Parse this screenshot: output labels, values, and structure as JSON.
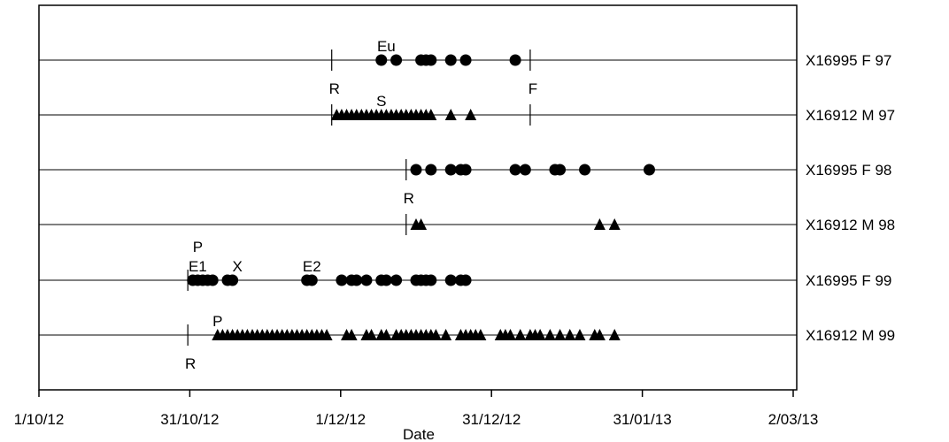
{
  "chart_data": {
    "type": "scatter",
    "title": "",
    "xlabel": "Date",
    "ylabel": "",
    "x_ticks": [
      "1/10/12",
      "31/10/12",
      "1/12/12",
      "31/12/12",
      "31/01/13",
      "2/03/13"
    ],
    "xlim": [
      "2012-10-01",
      "2013-03-02"
    ],
    "grid": false,
    "legend": "none",
    "series": [
      {
        "name": "X16995 F 97",
        "marker": "circle",
        "x": [
          "2012-12-09",
          "2012-12-12",
          "2012-12-17",
          "2012-12-18",
          "2012-12-19",
          "2012-12-23",
          "2012-12-26",
          "2013-01-05"
        ],
        "markers": [
          {
            "x": "2012-11-29",
            "label": "R"
          },
          {
            "x": "2013-01-08",
            "label": "F"
          }
        ],
        "annotations": [
          {
            "x": "2012-12-10",
            "label": "Eu"
          }
        ]
      },
      {
        "name": "X16912 M 97",
        "marker": "triangle",
        "x": [
          "2012-11-30",
          "2012-12-01",
          "2012-12-02",
          "2012-12-03",
          "2012-12-04",
          "2012-12-05",
          "2012-12-06",
          "2012-12-07",
          "2012-12-08",
          "2012-12-09",
          "2012-12-10",
          "2012-12-11",
          "2012-12-12",
          "2012-12-13",
          "2012-12-14",
          "2012-12-15",
          "2012-12-16",
          "2012-12-17",
          "2012-12-18",
          "2012-12-19",
          "2012-12-23",
          "2012-12-27"
        ],
        "markers": [
          {
            "x": "2012-11-29",
            "label": ""
          },
          {
            "x": "2013-01-08",
            "label": ""
          }
        ],
        "annotations": [
          {
            "x": "2012-12-09",
            "label": "S"
          }
        ]
      },
      {
        "name": "X16995 F 98",
        "marker": "circle",
        "x": [
          "2012-12-16",
          "2012-12-19",
          "2012-12-23",
          "2012-12-25",
          "2012-12-26",
          "2013-01-05",
          "2013-01-07",
          "2013-01-13",
          "2013-01-14",
          "2013-01-19",
          "2013-02-01"
        ],
        "markers": [
          {
            "x": "2012-12-14",
            "label": "R"
          }
        ],
        "annotations": []
      },
      {
        "name": "X16912 M 98",
        "marker": "triangle",
        "x": [
          "2012-12-16",
          "2012-12-17",
          "2013-01-22",
          "2013-01-25"
        ],
        "markers": [
          {
            "x": "2012-12-14",
            "label": ""
          }
        ],
        "annotations": []
      },
      {
        "name": "X16995 F 99",
        "marker": "circle",
        "x": [
          "2012-11-01",
          "2012-11-02",
          "2012-11-03",
          "2012-11-04",
          "2012-11-05",
          "2012-11-08",
          "2012-11-09",
          "2012-11-24",
          "2012-11-25",
          "2012-12-01",
          "2012-12-03",
          "2012-12-04",
          "2012-12-06",
          "2012-12-09",
          "2012-12-10",
          "2012-12-12",
          "2012-12-16",
          "2012-12-17",
          "2012-12-18",
          "2012-12-19",
          "2012-12-23",
          "2012-12-25",
          "2012-12-26"
        ],
        "markers": [
          {
            "x": "2012-10-31",
            "label": ""
          }
        ],
        "annotations": [
          {
            "x": "2012-11-02",
            "label": "P",
            "row": 2
          },
          {
            "x": "2012-11-02",
            "label": "E1",
            "row": 1
          },
          {
            "x": "2012-11-10",
            "label": "X",
            "row": 1
          },
          {
            "x": "2012-11-25",
            "label": "E2",
            "row": 1
          }
        ]
      },
      {
        "name": "X16912 M 99",
        "marker": "triangle",
        "x": [
          "2012-11-06",
          "2012-11-07",
          "2012-11-08",
          "2012-11-09",
          "2012-11-10",
          "2012-11-11",
          "2012-11-12",
          "2012-11-13",
          "2012-11-14",
          "2012-11-15",
          "2012-11-16",
          "2012-11-17",
          "2012-11-18",
          "2012-11-19",
          "2012-11-20",
          "2012-11-21",
          "2012-11-22",
          "2012-11-23",
          "2012-11-24",
          "2012-11-25",
          "2012-11-26",
          "2012-11-27",
          "2012-11-28",
          "2012-12-02",
          "2012-12-03",
          "2012-12-06",
          "2012-12-07",
          "2012-12-09",
          "2012-12-10",
          "2012-12-12",
          "2012-12-13",
          "2012-12-14",
          "2012-12-15",
          "2012-12-16",
          "2012-12-17",
          "2012-12-18",
          "2012-12-19",
          "2012-12-20",
          "2012-12-22",
          "2012-12-25",
          "2012-12-26",
          "2012-12-27",
          "2012-12-28",
          "2012-12-29",
          "2013-01-02",
          "2013-01-03",
          "2013-01-04",
          "2013-01-06",
          "2013-01-08",
          "2013-01-09",
          "2013-01-10",
          "2013-01-12",
          "2013-01-14",
          "2013-01-16",
          "2013-01-18",
          "2013-01-21",
          "2013-01-22",
          "2013-01-25"
        ],
        "markers": [
          {
            "x": "2012-10-31",
            "label": "R"
          }
        ],
        "annotations": [
          {
            "x": "2012-11-06",
            "label": "P"
          }
        ]
      }
    ]
  }
}
